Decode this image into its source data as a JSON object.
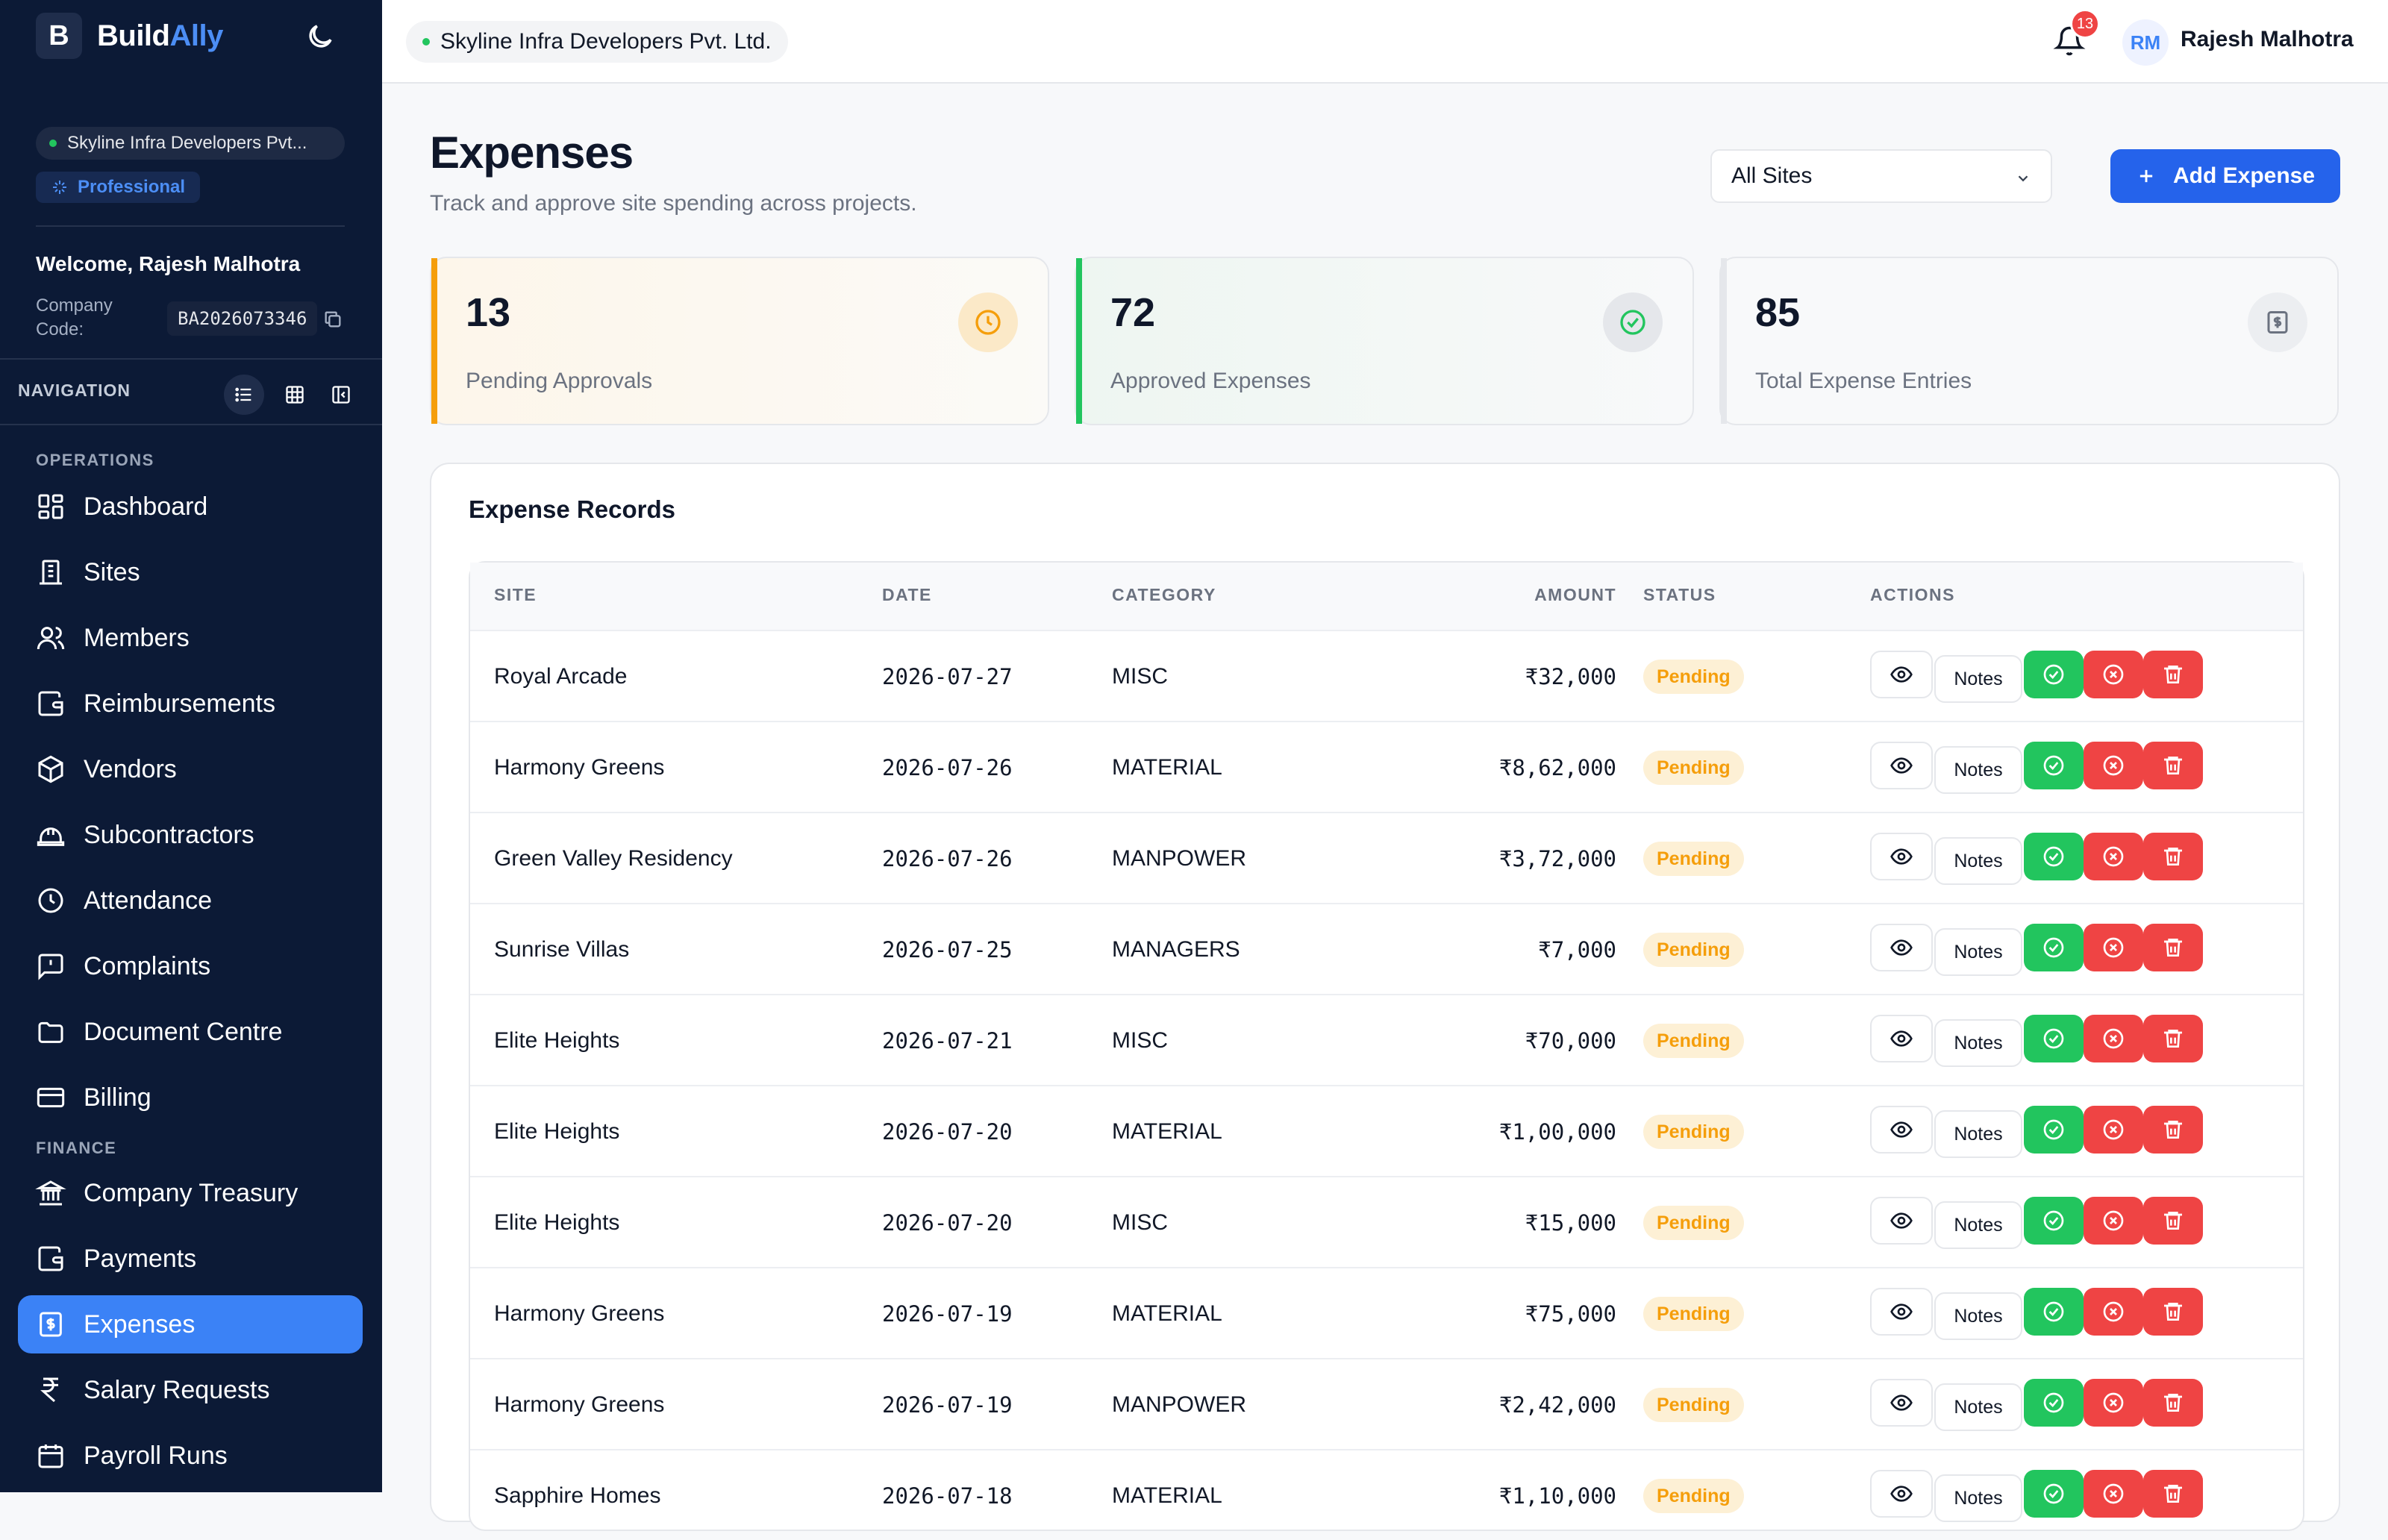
{
  "brand": {
    "logo_letter": "B",
    "name_part1": "Build",
    "name_part2": "Ally"
  },
  "sidebar": {
    "company": "Skyline Infra Developers Pvt...",
    "plan": "Professional",
    "welcome": "Welcome, Rajesh Malhotra",
    "company_code_label": "Company Code:",
    "company_code": "BA2026073346",
    "nav_header": "NAVIGATION",
    "sections": {
      "operations": "OPERATIONS",
      "finance": "FINANCE"
    },
    "items": [
      {
        "label": "Dashboard",
        "icon": "dashboard-icon"
      },
      {
        "label": "Sites",
        "icon": "building-icon"
      },
      {
        "label": "Members",
        "icon": "users-icon"
      },
      {
        "label": "Reimbursements",
        "icon": "wallet-icon"
      },
      {
        "label": "Vendors",
        "icon": "package-icon"
      },
      {
        "label": "Subcontractors",
        "icon": "hard-hat-icon"
      },
      {
        "label": "Attendance",
        "icon": "clock-icon"
      },
      {
        "label": "Complaints",
        "icon": "message-alert-icon"
      },
      {
        "label": "Document Centre",
        "icon": "folder-icon"
      },
      {
        "label": "Billing",
        "icon": "credit-card-icon"
      },
      {
        "label": "Company Treasury",
        "icon": "bank-icon"
      },
      {
        "label": "Payments",
        "icon": "wallet-icon"
      },
      {
        "label": "Expenses",
        "icon": "receipt-icon",
        "active": true
      },
      {
        "label": "Salary Requests",
        "icon": "rupee-icon"
      },
      {
        "label": "Payroll Runs",
        "icon": "calendar-icon"
      }
    ]
  },
  "topbar": {
    "company": "Skyline Infra Developers Pvt. Ltd.",
    "notifications": "13",
    "avatar_initials": "RM",
    "user_name": "Rajesh Malhotra"
  },
  "page": {
    "title": "Expenses",
    "subtitle": "Track and approve site spending across projects.",
    "site_filter": "All Sites",
    "add_button": "Add Expense"
  },
  "stats": [
    {
      "value": "13",
      "label": "Pending Approvals",
      "accent": "#f59e0b"
    },
    {
      "value": "72",
      "label": "Approved Expenses",
      "accent": "#22c55e"
    },
    {
      "value": "85",
      "label": "Total Expense Entries",
      "accent": "#e5e7eb"
    }
  ],
  "records": {
    "title": "Expense Records",
    "columns": [
      "SITE",
      "DATE",
      "CATEGORY",
      "AMOUNT",
      "STATUS",
      "ACTIONS"
    ],
    "notes_label": "Notes",
    "rows": [
      {
        "site": "Royal Arcade",
        "date": "2026-07-27",
        "category": "MISC",
        "amount": "₹32,000",
        "status": "Pending"
      },
      {
        "site": "Harmony Greens",
        "date": "2026-07-26",
        "category": "MATERIAL",
        "amount": "₹8,62,000",
        "status": "Pending"
      },
      {
        "site": "Green Valley Residency",
        "date": "2026-07-26",
        "category": "MANPOWER",
        "amount": "₹3,72,000",
        "status": "Pending"
      },
      {
        "site": "Sunrise Villas",
        "date": "2026-07-25",
        "category": "MANAGERS",
        "amount": "₹7,000",
        "status": "Pending"
      },
      {
        "site": "Elite Heights",
        "date": "2026-07-21",
        "category": "MISC",
        "amount": "₹70,000",
        "status": "Pending"
      },
      {
        "site": "Elite Heights",
        "date": "2026-07-20",
        "category": "MATERIAL",
        "amount": "₹1,00,000",
        "status": "Pending"
      },
      {
        "site": "Elite Heights",
        "date": "2026-07-20",
        "category": "MISC",
        "amount": "₹15,000",
        "status": "Pending"
      },
      {
        "site": "Harmony Greens",
        "date": "2026-07-19",
        "category": "MATERIAL",
        "amount": "₹75,000",
        "status": "Pending"
      },
      {
        "site": "Harmony Greens",
        "date": "2026-07-19",
        "category": "MANPOWER",
        "amount": "₹2,42,000",
        "status": "Pending"
      },
      {
        "site": "Sapphire Homes",
        "date": "2026-07-18",
        "category": "MATERIAL",
        "amount": "₹1,10,000",
        "status": "Pending"
      }
    ]
  },
  "colors": {
    "sidebar_bg": "#0c1a36",
    "primary": "#2563eb",
    "pending": "#f59e0b",
    "approve": "#22c55e",
    "reject": "#ef4444"
  }
}
